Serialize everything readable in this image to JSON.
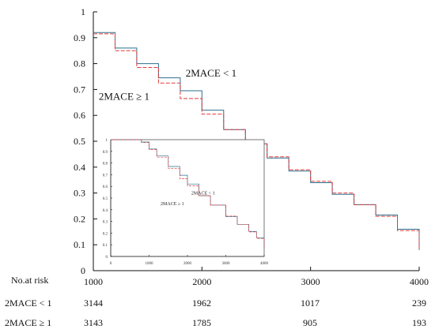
{
  "chart_data": [
    {
      "type": "line",
      "title": "",
      "xlabel": "",
      "ylabel": "",
      "xlim": [
        1000,
        4000
      ],
      "ylim": [
        0,
        1
      ],
      "x_ticks": [
        "1000",
        "2000",
        "3000",
        "4000"
      ],
      "y_ticks": [
        "0",
        "0.1",
        "0.2",
        "0.3",
        "0.4",
        "0.5",
        "0.6",
        "0.7",
        "0.8",
        "0.9",
        "1"
      ],
      "grid": false,
      "legend": "none",
      "annotations": [
        {
          "text": "2MACE < 1",
          "x": 1850,
          "y": 0.75
        },
        {
          "text": "2MACE ≥ 1",
          "x": 1050,
          "y": 0.66
        }
      ],
      "series": [
        {
          "name": "2MACE < 1",
          "color": "#2e6f8e",
          "x": [
            1000,
            1200,
            1400,
            1600,
            1800,
            2000,
            2200,
            2400,
            2600,
            2800,
            3000,
            3200,
            3400,
            3600,
            3800,
            4000
          ],
          "y": [
            0.92,
            0.86,
            0.8,
            0.745,
            0.695,
            0.62,
            0.545,
            0.49,
            0.435,
            0.385,
            0.34,
            0.295,
            0.255,
            0.215,
            0.16,
            0.08
          ]
        },
        {
          "name": "2MACE ≥ 1",
          "color": "#e23a3a",
          "x": [
            1000,
            1200,
            1400,
            1600,
            1800,
            2000,
            2200,
            2400,
            2600,
            2800,
            3000,
            3200,
            3400,
            3600,
            3800,
            4000
          ],
          "y": [
            0.915,
            0.85,
            0.785,
            0.725,
            0.665,
            0.605,
            0.545,
            0.49,
            0.44,
            0.39,
            0.345,
            0.3,
            0.255,
            0.21,
            0.155,
            0.08
          ]
        }
      ]
    },
    {
      "type": "line",
      "title": "",
      "xlabel": "",
      "ylabel": "",
      "xlim": [
        0,
        4000
      ],
      "ylim": [
        0,
        1
      ],
      "x_ticks": [
        "0",
        "1000",
        "2000",
        "3000",
        "4000"
      ],
      "y_ticks": [
        "0",
        "0.1",
        "0.2",
        "0.3",
        "0.4",
        "0.5",
        "0.6",
        "0.7",
        "0.8",
        "0.9",
        "1"
      ],
      "grid": false,
      "legend": "none",
      "annotations": [
        {
          "text": "2MACE < 1",
          "x": 2100,
          "y": 0.53
        },
        {
          "text": "2MACE ≥ 1",
          "x": 1300,
          "y": 0.44
        }
      ],
      "series": [
        {
          "name": "2MACE < 1",
          "color": "#2e6f8e",
          "x": [
            0,
            500,
            700,
            800,
            1000,
            1200,
            1500,
            1800,
            2000,
            2300,
            2600,
            3000,
            3300,
            3600,
            3800,
            4000
          ],
          "y": [
            1.0,
            1.0,
            1.0,
            0.98,
            0.92,
            0.86,
            0.77,
            0.695,
            0.62,
            0.52,
            0.44,
            0.34,
            0.275,
            0.215,
            0.16,
            0.08
          ]
        },
        {
          "name": "2MACE ≥ 1",
          "color": "#e23a3a",
          "x": [
            0,
            500,
            700,
            800,
            1000,
            1200,
            1500,
            1800,
            2000,
            2300,
            2600,
            3000,
            3300,
            3600,
            3800,
            4000
          ],
          "y": [
            1.0,
            1.0,
            1.0,
            0.975,
            0.915,
            0.85,
            0.755,
            0.665,
            0.605,
            0.52,
            0.44,
            0.345,
            0.275,
            0.21,
            0.155,
            0.08
          ]
        }
      ]
    }
  ],
  "risk_table": {
    "header": "No.at risk",
    "rows": [
      {
        "label": "2MACE < 1",
        "values": [
          "3144",
          "1962",
          "1017",
          "239"
        ]
      },
      {
        "label": "2MACE ≥ 1",
        "values": [
          "3143",
          "1785",
          "905",
          "193"
        ]
      }
    ]
  }
}
